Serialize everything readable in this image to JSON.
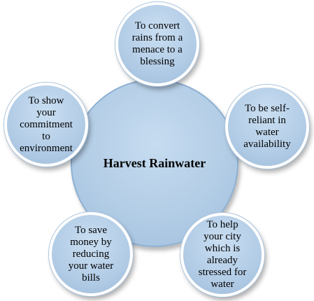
{
  "diagram": {
    "center": {
      "label": "Harvest Rainwater"
    },
    "nodes": [
      {
        "label": "To convert\nrains from a\nmenace to a\nblessing"
      },
      {
        "label": "To be self-\nreliant in\nwater\navailability"
      },
      {
        "label": "To help\nyour city\nwhich is\nalready\nstressed for\nwater"
      },
      {
        "label": "To save\nmoney by\nreducing\nyour water\nbills"
      },
      {
        "label": "To show\nyour\ncommitment\nto\nenvironment"
      }
    ],
    "colors": {
      "circle_fill": "#b3cde6",
      "circle_border": "#ffffff",
      "text": "#000000"
    }
  }
}
